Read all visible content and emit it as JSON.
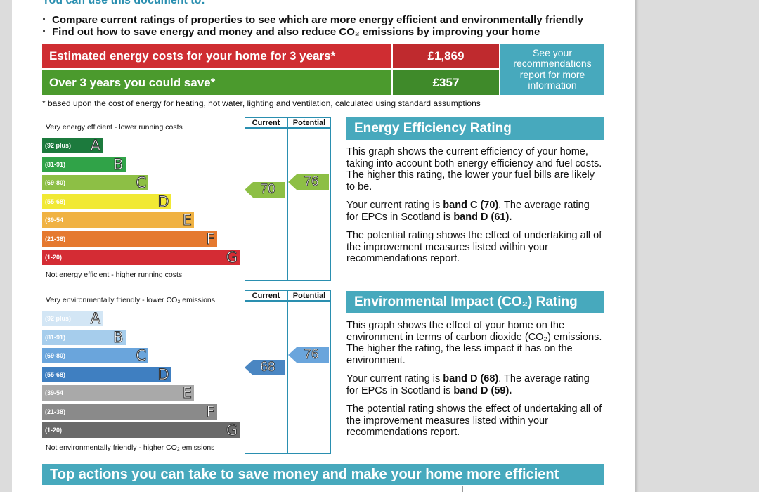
{
  "intro": {
    "heading": "You can use this document to:",
    "bullets": [
      "Compare current ratings of properties to see which are more energy efficient and environmentally friendly",
      "Find out how to save energy and money and also reduce CO₂ emissions by improving your home"
    ]
  },
  "costs": {
    "estimated_label": "Estimated energy costs for your home for 3 years*",
    "estimated_value": "£1,869",
    "save_label": "Over 3 years you could save*",
    "save_value": "£357",
    "recommendations": "See your recommendations report for more information",
    "footnote": "* based upon the cost of energy for heating, hot water, lighting and ventilation, calculated using standard assumptions"
  },
  "energy_chart": {
    "top_note": "Very energy efficient - lower running costs",
    "bottom_note": "Not energy efficient - higher running costs",
    "col_current": "Current",
    "col_potential": "Potential",
    "current": "70",
    "potential": "76",
    "bands": [
      {
        "range": "(92 plus)",
        "letter": "A",
        "color": "#1c7a3d"
      },
      {
        "range": "(81-91)",
        "letter": "B",
        "color": "#30a348"
      },
      {
        "range": "(69-80)",
        "letter": "C",
        "color": "#8dbf45"
      },
      {
        "range": "(55-68)",
        "letter": "D",
        "color": "#f1e934"
      },
      {
        "range": "(39-54",
        "letter": "E",
        "color": "#f0b243"
      },
      {
        "range": "(21-38)",
        "letter": "F",
        "color": "#e5792f"
      },
      {
        "range": "(1-20)",
        "letter": "G",
        "color": "#d42c34"
      }
    ],
    "current_color": "#8dbf45",
    "potential_color": "#8dbf45"
  },
  "energy_text": {
    "title": "Energy Efficiency Rating",
    "p1": "This graph shows the current efficiency of your home, taking into account both energy efficiency and fuel costs. The higher this rating, the lower your fuel bills are likely to be.",
    "p2_a": "Your current rating is ",
    "p2_b": "band C (70)",
    "p2_c": ". The average rating for EPCs in Scotland is ",
    "p2_d": "band D (61).",
    "p3": "The potential rating shows the effect of undertaking all of the improvement measures listed within your recommendations report."
  },
  "env_chart": {
    "top_note": "Very environmentally friendly - lower CO₂ emissions",
    "bottom_note": "Not environmentally friendly - higher CO₂ emissions",
    "col_current": "Current",
    "col_potential": "Potential",
    "current": "68",
    "potential": "76",
    "bands": [
      {
        "range": "(92 plus)",
        "letter": "A",
        "color": "#d3e6f5"
      },
      {
        "range": "(81-91)",
        "letter": "B",
        "color": "#a6cdec"
      },
      {
        "range": "(69-80)",
        "letter": "C",
        "color": "#6aa5dc"
      },
      {
        "range": "(55-68)",
        "letter": "D",
        "color": "#3f7fc1"
      },
      {
        "range": "(39-54",
        "letter": "E",
        "color": "#a9a9a9"
      },
      {
        "range": "(21-38)",
        "letter": "F",
        "color": "#8a8a8a"
      },
      {
        "range": "(1-20)",
        "letter": "G",
        "color": "#6a6a6a"
      }
    ],
    "current_color": "#4a86c2",
    "potential_color": "#6aa5dc"
  },
  "env_text": {
    "title": "Environmental Impact (CO₂) Rating",
    "p1": "This graph shows the effect of your home on the environment in terms of carbon dioxide (CO₂) emissions. The higher the rating, the less impact it has on the environment.",
    "p2_a": "Your current rating is ",
    "p2_b": "band D (68)",
    "p2_c": ". The average rating for EPCs in Scotland is ",
    "p2_d": "band D (59).",
    "p3": "The potential rating shows the effect of undertaking all of the improvement measures listed within your recommendations report."
  },
  "bottom": {
    "title": "Top actions you can take to save money and make your home more efficient"
  }
}
